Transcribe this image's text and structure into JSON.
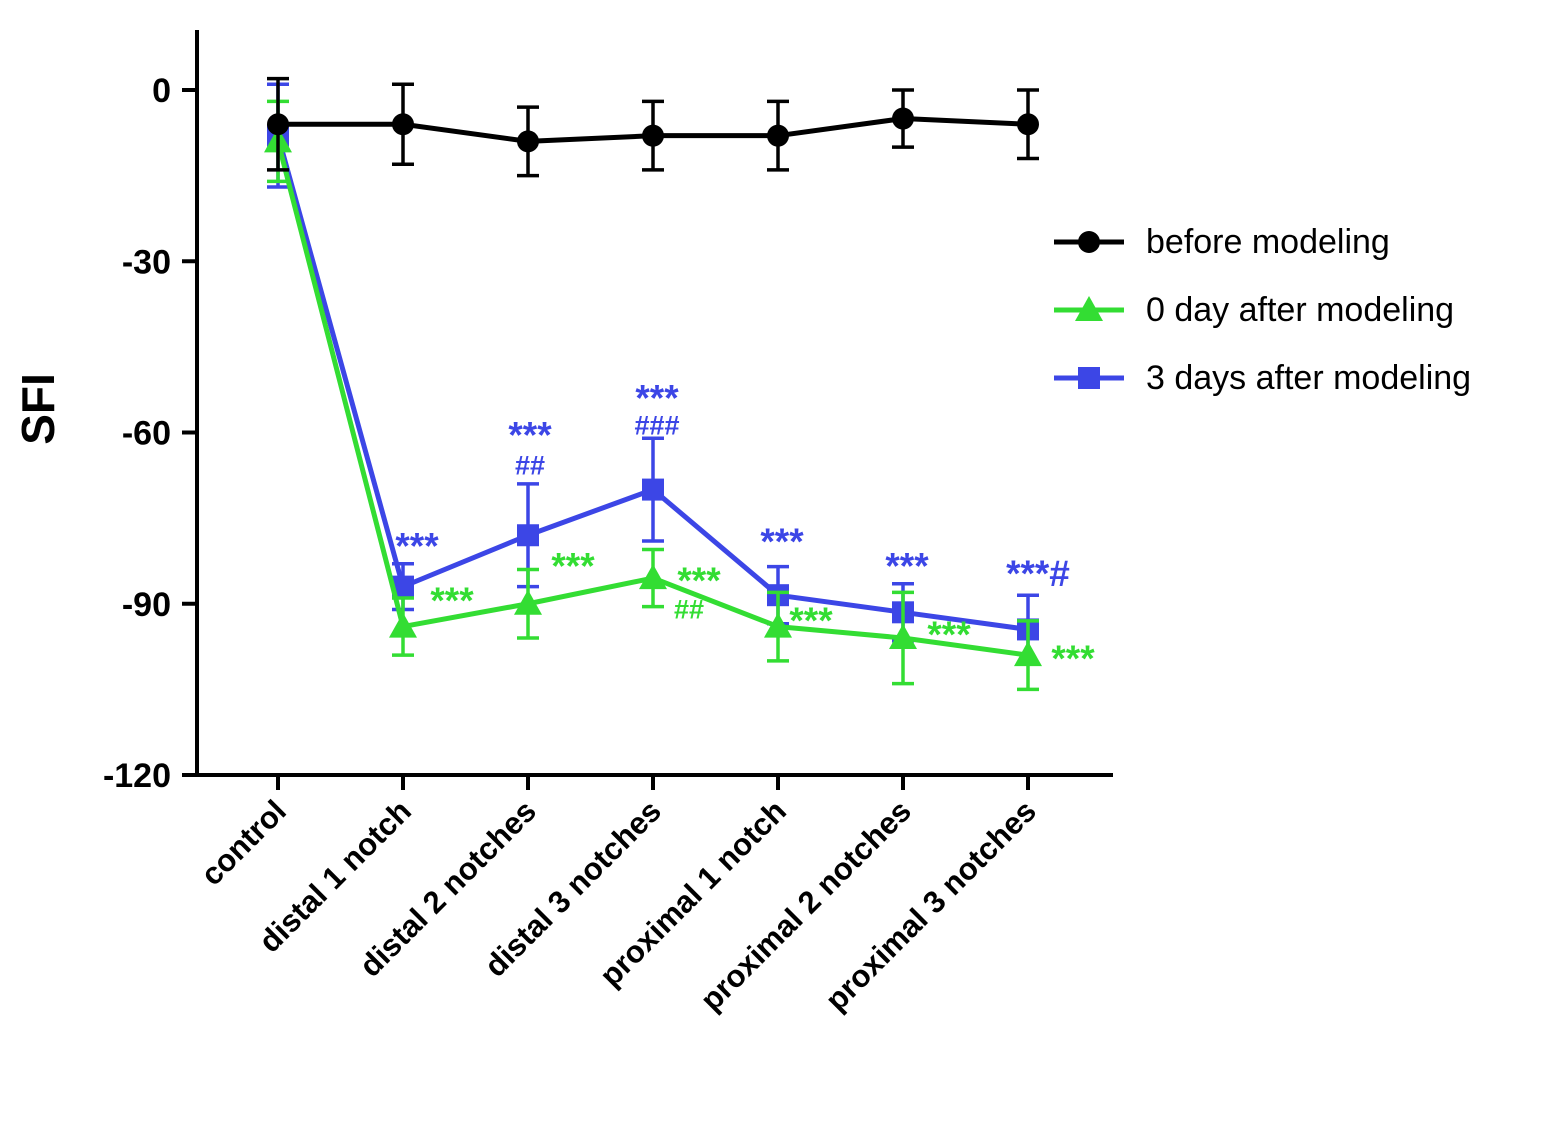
{
  "chart_data": {
    "type": "line",
    "title": "",
    "ylabel": "SFI",
    "xlabel": "",
    "ylim": [
      -120,
      0
    ],
    "yticks": [
      0,
      -30,
      -60,
      -90,
      -120
    ],
    "grid": false,
    "legend_position": "right",
    "palette": {
      "black": "#000000",
      "green": "#33dd33",
      "blue": "#3c46e6"
    },
    "categories": [
      "control",
      "distal 1 notch",
      "distal 2 notches",
      "distal 3 notches",
      "proximal 1 notch",
      "proximal 2 notches",
      "proximal 3 notches"
    ],
    "series": [
      {
        "name": "before modeling",
        "marker": "circle",
        "color": "black",
        "values": [
          -6,
          -6,
          -9,
          -8,
          -8,
          -5,
          -6
        ],
        "errors": [
          8,
          7,
          6,
          6,
          6,
          5,
          6
        ]
      },
      {
        "name": "0 day after modeling",
        "marker": "triangle",
        "color": "green",
        "values": [
          -9,
          -94,
          -90,
          -85.5,
          -94,
          -96,
          -99
        ],
        "errors": [
          7,
          5,
          6,
          5,
          6,
          8,
          6
        ]
      },
      {
        "name": "3 days after modeling",
        "marker": "square",
        "color": "blue",
        "values": [
          -8,
          -87,
          -78,
          -70,
          -88.5,
          -91.5,
          -94.5
        ],
        "errors": [
          9,
          4,
          9,
          9,
          5,
          5,
          6
        ]
      }
    ],
    "draw_order": [
      2,
      1,
      0
    ],
    "annotations": [
      {
        "ci": 1,
        "y": -80.0,
        "dx": 14,
        "text": "***",
        "color": "blue",
        "kind": "stars"
      },
      {
        "ci": 1,
        "y": -89.5,
        "dx": 49,
        "text": "***",
        "color": "green",
        "kind": "stars"
      },
      {
        "ci": 2,
        "y": -60.5,
        "dx": 2,
        "text": "***",
        "color": "blue",
        "kind": "stars"
      },
      {
        "ci": 2,
        "y": -65.8,
        "dx": 2,
        "text": "##",
        "color": "blue",
        "kind": "hashes"
      },
      {
        "ci": 2,
        "y": -83.5,
        "dx": 45,
        "text": "***",
        "color": "green",
        "kind": "stars"
      },
      {
        "ci": 3,
        "y": -54.0,
        "dx": 4,
        "text": "***",
        "color": "blue",
        "kind": "stars"
      },
      {
        "ci": 3,
        "y": -58.8,
        "dx": 4,
        "text": "###",
        "color": "blue",
        "kind": "hashes"
      },
      {
        "ci": 3,
        "y": -86.0,
        "dx": 46,
        "text": "***",
        "color": "green",
        "kind": "stars"
      },
      {
        "ci": 3,
        "y": -91.0,
        "dx": 36,
        "text": "##",
        "color": "green",
        "kind": "hashes"
      },
      {
        "ci": 4,
        "y": -79.2,
        "dx": 4,
        "text": "***",
        "color": "blue",
        "kind": "stars"
      },
      {
        "ci": 4,
        "y": -93.0,
        "dx": 33,
        "text": "***",
        "color": "green",
        "kind": "stars"
      },
      {
        "ci": 5,
        "y": -83.5,
        "dx": 4,
        "text": "***",
        "color": "blue",
        "kind": "stars"
      },
      {
        "ci": 5,
        "y": -95.5,
        "dx": 46,
        "text": "***",
        "color": "green",
        "kind": "stars"
      },
      {
        "ci": 6,
        "y": -84.8,
        "dx": 10,
        "text": "***#",
        "color": "blue",
        "kind": "stars"
      },
      {
        "ci": 6,
        "y": -99.7,
        "dx": 45,
        "text": "***",
        "color": "green",
        "kind": "stars"
      }
    ]
  }
}
